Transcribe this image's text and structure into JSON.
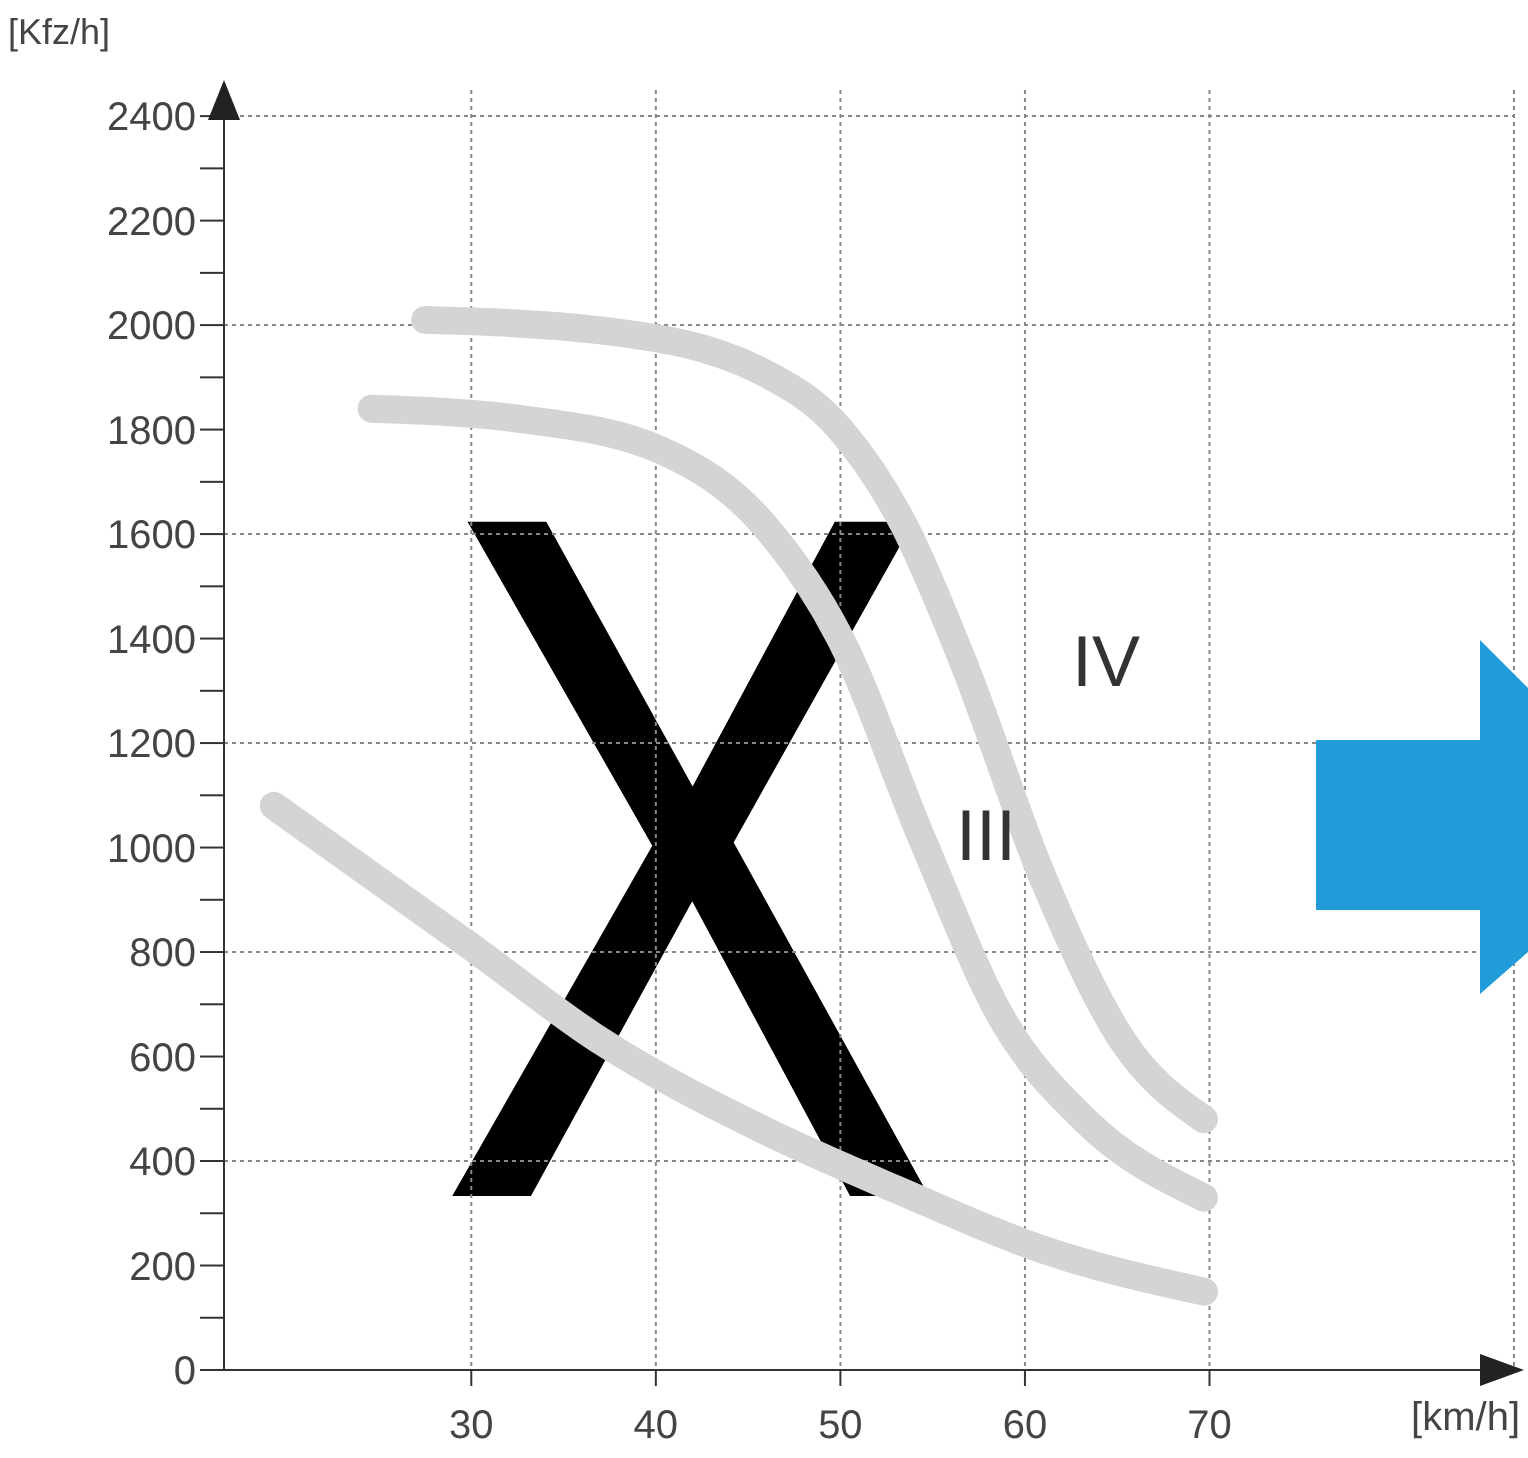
{
  "chart_data": {
    "type": "line",
    "xlabel": "[km/h]",
    "ylabel": "[Kfz/h]",
    "xlim": [
      16.6,
      86.5
    ],
    "xticks": [
      30,
      40,
      50,
      60,
      70
    ],
    "ylim": [
      0,
      2450
    ],
    "yticks": [
      0,
      {
        "value": 100,
        "label": null
      },
      200,
      {
        "value": 300,
        "label": null
      },
      400,
      {
        "value": 500,
        "label": null
      },
      600,
      {
        "value": 700,
        "label": null
      },
      800,
      {
        "value": 900,
        "label": null
      },
      1000,
      {
        "value": 1100,
        "label": null
      },
      1200,
      {
        "value": 1300,
        "label": null
      },
      1400,
      {
        "value": 1500,
        "label": null
      },
      1600,
      {
        "value": 1700,
        "label": null
      },
      1800,
      {
        "value": 1900,
        "label": null
      },
      2000,
      {
        "value": 2100,
        "label": null
      },
      2200,
      {
        "value": 2300,
        "label": null
      },
      2400
    ],
    "grid": "x",
    "marker": "none",
    "line_style": "solid",
    "series": [
      {
        "color": "#d4d4d4",
        "x": [
          27.5,
          37,
          45.8,
          50,
          53.4,
          56.6,
          61,
          65.3,
          69.7
        ],
        "values": [
          2010,
          1990,
          1910,
          1800,
          1620,
          1360,
          940,
          630,
          480
        ]
      },
      {
        "color": "#d4d4d4",
        "x": [
          24.6,
          32.7,
          40.3,
          45.8,
          50,
          54.5,
          58.8,
          63.2,
          69.7
        ],
        "values": [
          1840,
          1820,
          1760,
          1620,
          1400,
          1010,
          670,
          480,
          330
        ]
      },
      {
        "color": "#d4d4d4",
        "x": [
          19.3,
          30,
          37,
          45.8,
          53.4,
          61,
          69.7
        ],
        "values": [
          1080,
          810,
          630,
          460,
          340,
          230,
          150
        ]
      }
    ],
    "ref_lines": [
      {
        "axis": "y",
        "value": 400,
        "line_style": "dotted",
        "color": "#888888"
      },
      {
        "axis": "y",
        "value": 800,
        "line_style": "dotted",
        "color": "#888888"
      },
      {
        "axis": "y",
        "value": 1200,
        "line_style": "dotted",
        "color": "#888888"
      },
      {
        "axis": "y",
        "value": 1600,
        "line_style": "dotted",
        "color": "#888888"
      },
      {
        "axis": "y",
        "value": 2000,
        "line_style": "dotted",
        "color": "#888888"
      },
      {
        "axis": "y",
        "value": 2400,
        "line_style": "dotted",
        "color": "#888888"
      }
    ],
    "annotations": [
      "X",
      "III",
      "IV"
    ]
  }
}
